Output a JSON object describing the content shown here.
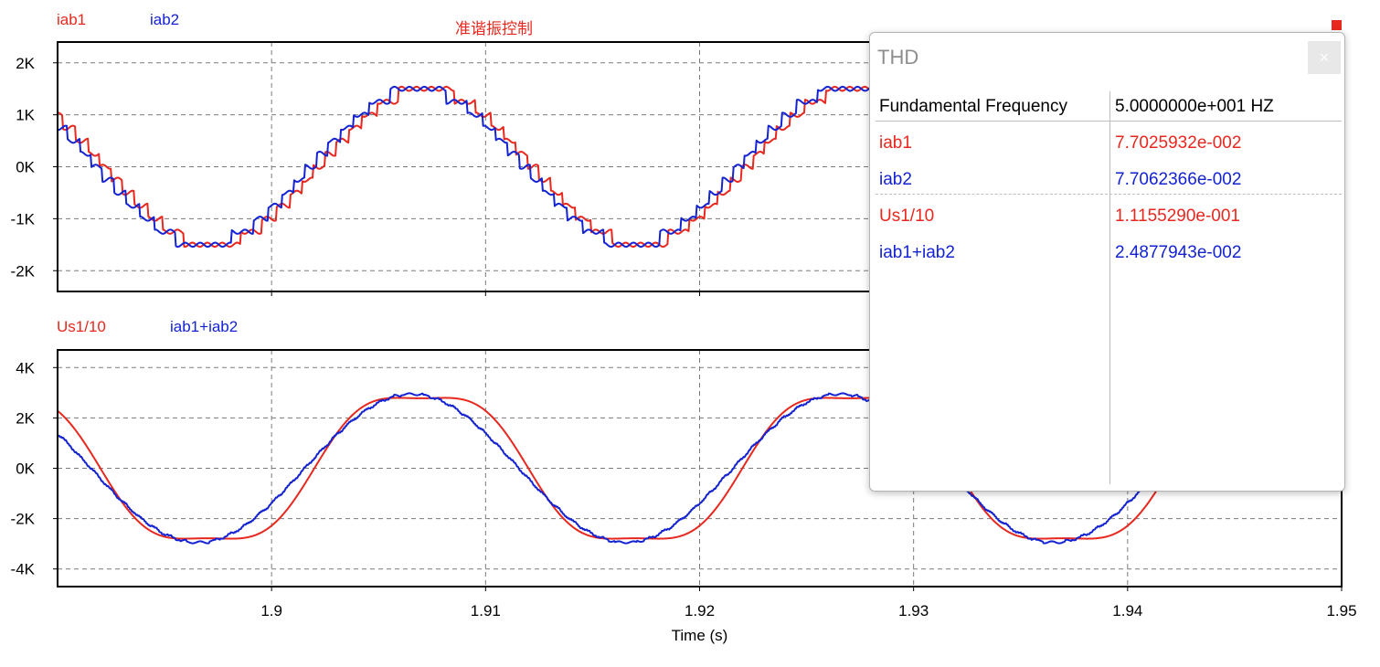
{
  "colors": {
    "red": "#e8281e",
    "blue": "#1423d2",
    "grid": "#7a7a7a",
    "axis": "#000000"
  },
  "chart_data": [
    {
      "type": "line",
      "title": "准谐振控制",
      "xlabel": "",
      "ylabel": "",
      "xlim": [
        1.89,
        1.95
      ],
      "ylim": [
        -2.4,
        2.4
      ],
      "y_ticks": [
        -2,
        -1,
        0,
        1,
        2
      ],
      "y_tick_labels": [
        "-2K",
        "-1K",
        "0K",
        "1K",
        "2K"
      ],
      "x_ticks": [
        1.9,
        1.91,
        1.92,
        1.93,
        1.94
      ],
      "grid": true,
      "series": [
        {
          "name": "iab1",
          "color": "#e8281e",
          "frequency": 50,
          "amplitude": 1.5,
          "phase_deg": -40,
          "harmonics": [],
          "step_size": 0.25
        },
        {
          "name": "iab2",
          "color": "#1423d2",
          "frequency": 50,
          "amplitude": 1.5,
          "phase_deg": -33,
          "harmonics": [],
          "step_size": 0.25
        }
      ]
    },
    {
      "type": "line",
      "title": "",
      "xlabel": "Time (s)",
      "ylabel": "",
      "xlim": [
        1.89,
        1.95
      ],
      "ylim": [
        -4.7,
        4.7
      ],
      "y_ticks": [
        -4,
        -2,
        0,
        2,
        4
      ],
      "y_tick_labels": [
        "-4K",
        "-2K",
        "0K",
        "2K",
        "4K"
      ],
      "x_ticks": [
        1.9,
        1.91,
        1.92,
        1.93,
        1.94,
        1.95
      ],
      "x_tick_labels": [
        "1.9",
        "1.91",
        "1.92",
        "1.93",
        "1.94",
        "1.95"
      ],
      "grid": true,
      "series": [
        {
          "name": "Us1/10",
          "color": "#e8281e",
          "frequency": 50,
          "amplitude": 3.2,
          "phase_deg": -36,
          "harmonics": [
            [
              3,
              0.42,
              0
            ]
          ],
          "step_size": 0
        },
        {
          "name": "iab1+iab2",
          "color": "#1423d2",
          "frequency": 50,
          "amplitude": 2.95,
          "phase_deg": -28,
          "harmonics": [],
          "step_size": 0.06
        }
      ]
    }
  ],
  "thd_dialog": {
    "title": "THD",
    "close_label": "×",
    "header": {
      "label": "Fundamental Frequency",
      "value": "5.0000000e+001 HZ"
    },
    "rows": [
      {
        "label": "iab1",
        "value": "7.7025932e-002",
        "color": "#e8281e"
      },
      {
        "label": "iab2",
        "value": "7.7062366e-002",
        "color": "#1423d2"
      },
      {
        "label": "Us1/10",
        "value": "1.1155290e-001",
        "color": "#e8281e"
      },
      {
        "label": "iab1+iab2",
        "value": "2.4877943e-002",
        "color": "#1423d2"
      }
    ]
  }
}
